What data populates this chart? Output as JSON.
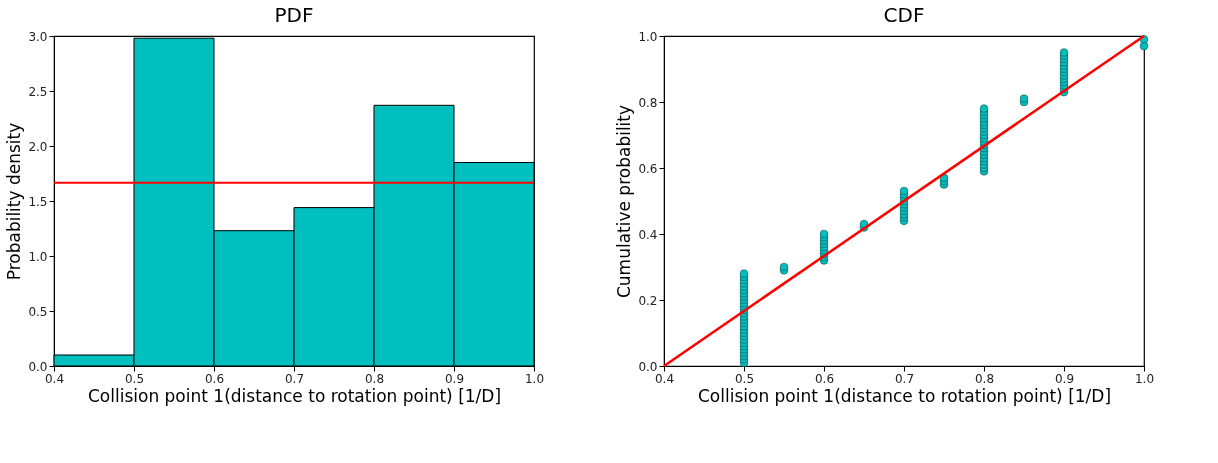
{
  "chart_data": [
    {
      "type": "histogram",
      "title": "PDF",
      "xlabel": "Collision point 1(distance to rotation point) [1/D]",
      "ylabel": "Probability density",
      "bins": [
        0.4,
        0.5,
        0.6,
        0.7,
        0.8,
        0.9,
        1.0
      ],
      "values": [
        0.1,
        2.98,
        1.23,
        1.44,
        2.37,
        1.85
      ],
      "color": "#00bfbf",
      "xlim": [
        0.4,
        1.0
      ],
      "xticks": [
        {
          "value": 0.4,
          "label": "0.4"
        },
        {
          "value": 0.5,
          "label": "0.5"
        },
        {
          "value": 0.6,
          "label": "0.6"
        },
        {
          "value": 0.7,
          "label": "0.7"
        },
        {
          "value": 0.8,
          "label": "0.8"
        },
        {
          "value": 0.9,
          "label": "0.9"
        },
        {
          "value": 1.0,
          "label": "1.0"
        }
      ],
      "ylim": [
        0,
        3.0
      ],
      "yticks": [
        {
          "value": 0,
          "label": "0.0"
        },
        {
          "value": 0.5,
          "label": "0.5"
        },
        {
          "value": 1.0,
          "label": "1.0"
        },
        {
          "value": 1.5,
          "label": "1.5"
        },
        {
          "value": 2.0,
          "label": "2.0"
        },
        {
          "value": 2.5,
          "label": "2.5"
        },
        {
          "value": 3.0,
          "label": "3.0"
        }
      ],
      "ref_lines": [
        {
          "axis": "y",
          "value": 1.667,
          "color": "#ff0000"
        }
      ],
      "grid": false
    },
    {
      "type": "scatter",
      "title": "CDF",
      "xlabel": "Collision point 1(distance to rotation point) [1/D]",
      "ylabel": "Cumulative probability",
      "series": [
        {
          "type": "scatter",
          "color": "#00bfbf",
          "marker": "circle",
          "x": [
            0.5,
            0.5,
            0.5,
            0.5,
            0.5,
            0.5,
            0.5,
            0.5,
            0.5,
            0.5,
            0.5,
            0.5,
            0.5,
            0.5,
            0.5,
            0.5,
            0.5,
            0.5,
            0.5,
            0.5,
            0.5,
            0.5,
            0.5,
            0.5,
            0.5,
            0.5,
            0.5,
            0.5,
            0.55,
            0.55,
            0.6,
            0.6,
            0.6,
            0.6,
            0.6,
            0.6,
            0.6,
            0.6,
            0.6,
            0.65,
            0.65,
            0.7,
            0.7,
            0.7,
            0.7,
            0.7,
            0.7,
            0.7,
            0.7,
            0.7,
            0.7,
            0.75,
            0.75,
            0.75,
            0.8,
            0.8,
            0.8,
            0.8,
            0.8,
            0.8,
            0.8,
            0.8,
            0.8,
            0.8,
            0.8,
            0.8,
            0.8,
            0.8,
            0.8,
            0.8,
            0.8,
            0.8,
            0.8,
            0.8,
            0.85,
            0.85,
            0.9,
            0.9,
            0.9,
            0.9,
            0.9,
            0.9,
            0.9,
            0.9,
            0.9,
            0.9,
            0.9,
            0.9,
            0.9,
            1.0,
            1.0
          ],
          "values": [
            0.01,
            0.02,
            0.03,
            0.04,
            0.05,
            0.06,
            0.07,
            0.08,
            0.09,
            0.1,
            0.11,
            0.12,
            0.13,
            0.14,
            0.15,
            0.16,
            0.17,
            0.18,
            0.19,
            0.2,
            0.21,
            0.22,
            0.23,
            0.24,
            0.25,
            0.26,
            0.27,
            0.28,
            0.29,
            0.3,
            0.32,
            0.33,
            0.34,
            0.35,
            0.36,
            0.37,
            0.38,
            0.39,
            0.4,
            0.42,
            0.43,
            0.44,
            0.45,
            0.46,
            0.47,
            0.48,
            0.49,
            0.5,
            0.51,
            0.52,
            0.53,
            0.55,
            0.56,
            0.57,
            0.59,
            0.6,
            0.61,
            0.62,
            0.63,
            0.64,
            0.65,
            0.66,
            0.67,
            0.68,
            0.69,
            0.7,
            0.71,
            0.72,
            0.73,
            0.74,
            0.75,
            0.76,
            0.77,
            0.78,
            0.8,
            0.81,
            0.83,
            0.84,
            0.85,
            0.86,
            0.87,
            0.88,
            0.89,
            0.9,
            0.91,
            0.92,
            0.93,
            0.94,
            0.95,
            0.97,
            0.99
          ]
        },
        {
          "type": "line",
          "color": "#ff0000",
          "x": [
            0.4,
            1.0
          ],
          "values": [
            0.0,
            1.0
          ]
        }
      ],
      "xlim": [
        0.4,
        1.0
      ],
      "xticks": [
        {
          "value": 0.4,
          "label": "0.4"
        },
        {
          "value": 0.5,
          "label": "0.5"
        },
        {
          "value": 0.6,
          "label": "0.6"
        },
        {
          "value": 0.7,
          "label": "0.7"
        },
        {
          "value": 0.8,
          "label": "0.8"
        },
        {
          "value": 0.9,
          "label": "0.9"
        },
        {
          "value": 1.0,
          "label": "1.0"
        }
      ],
      "ylim": [
        0,
        1.0
      ],
      "yticks": [
        {
          "value": 0,
          "label": "0.0"
        },
        {
          "value": 0.2,
          "label": "0.2"
        },
        {
          "value": 0.4,
          "label": "0.4"
        },
        {
          "value": 0.6,
          "label": "0.6"
        },
        {
          "value": 0.8,
          "label": "0.8"
        },
        {
          "value": 1.0,
          "label": "1.0"
        }
      ],
      "grid": false
    }
  ]
}
